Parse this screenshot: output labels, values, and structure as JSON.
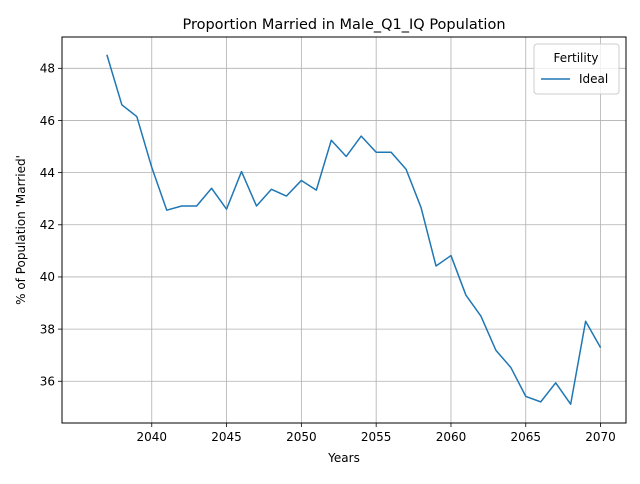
{
  "chart_data": {
    "type": "line",
    "title": "Proportion Married in Male_Q1_IQ Population",
    "xlabel": "Years",
    "ylabel": "% of Population 'Married'",
    "xlim": [
      2034,
      2071.7
    ],
    "ylim": [
      34.4,
      49.2
    ],
    "xticks": [
      2040,
      2045,
      2050,
      2055,
      2060,
      2065,
      2070
    ],
    "yticks": [
      36,
      38,
      40,
      42,
      44,
      46,
      48
    ],
    "grid": true,
    "legend": {
      "title": "Fertility",
      "position": "top-right"
    },
    "series": [
      {
        "name": "Ideal",
        "color": "#1f77b4",
        "x": [
          2037,
          2038,
          2039,
          2040,
          2041,
          2042,
          2043,
          2044,
          2045,
          2046,
          2047,
          2048,
          2049,
          2050,
          2051,
          2052,
          2053,
          2054,
          2055,
          2056,
          2057,
          2058,
          2059,
          2060,
          2061,
          2062,
          2063,
          2064,
          2065,
          2066,
          2067,
          2068,
          2069,
          2070
        ],
        "y": [
          48.52,
          46.6,
          46.15,
          44.2,
          42.56,
          42.72,
          42.72,
          43.4,
          42.6,
          44.04,
          42.72,
          43.36,
          43.1,
          43.7,
          43.33,
          45.24,
          44.62,
          45.4,
          44.78,
          44.78,
          44.13,
          42.66,
          40.42,
          40.82,
          39.3,
          38.5,
          37.19,
          36.53,
          35.42,
          35.21,
          35.94,
          35.12,
          38.3,
          37.29
        ]
      }
    ]
  }
}
